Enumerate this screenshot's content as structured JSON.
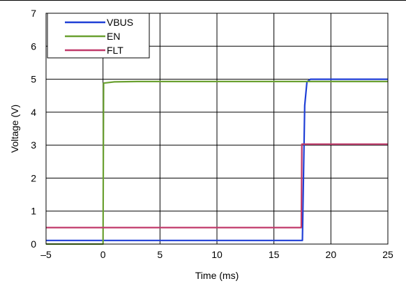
{
  "chart_data": {
    "type": "line",
    "title": "",
    "xlabel": "Time (ms)",
    "ylabel": "Voltage (V)",
    "xlim": [
      -5,
      25
    ],
    "ylim": [
      0,
      7
    ],
    "xticks": [
      "–5",
      "0",
      "5",
      "10",
      "15",
      "20",
      "25"
    ],
    "yticks": [
      "0",
      "1",
      "2",
      "3",
      "4",
      "5",
      "6",
      "7"
    ],
    "grid": true,
    "legend_position": "top-left",
    "series": [
      {
        "name": "VBUS",
        "color": "#1f3fd6",
        "x": [
          -5,
          17.5,
          17.7,
          17.9,
          18.2,
          25
        ],
        "y": [
          0.11,
          0.11,
          4.2,
          4.92,
          5.0,
          5.0
        ]
      },
      {
        "name": "EN",
        "color": "#6aa030",
        "x": [
          -5,
          0,
          0.05,
          1,
          3,
          25
        ],
        "y": [
          0.0,
          0.0,
          4.88,
          4.92,
          4.93,
          4.93
        ]
      },
      {
        "name": "FLT",
        "color": "#c0396a",
        "x": [
          -5,
          17.4,
          17.45,
          25
        ],
        "y": [
          0.5,
          0.5,
          3.03,
          3.03
        ]
      }
    ]
  }
}
